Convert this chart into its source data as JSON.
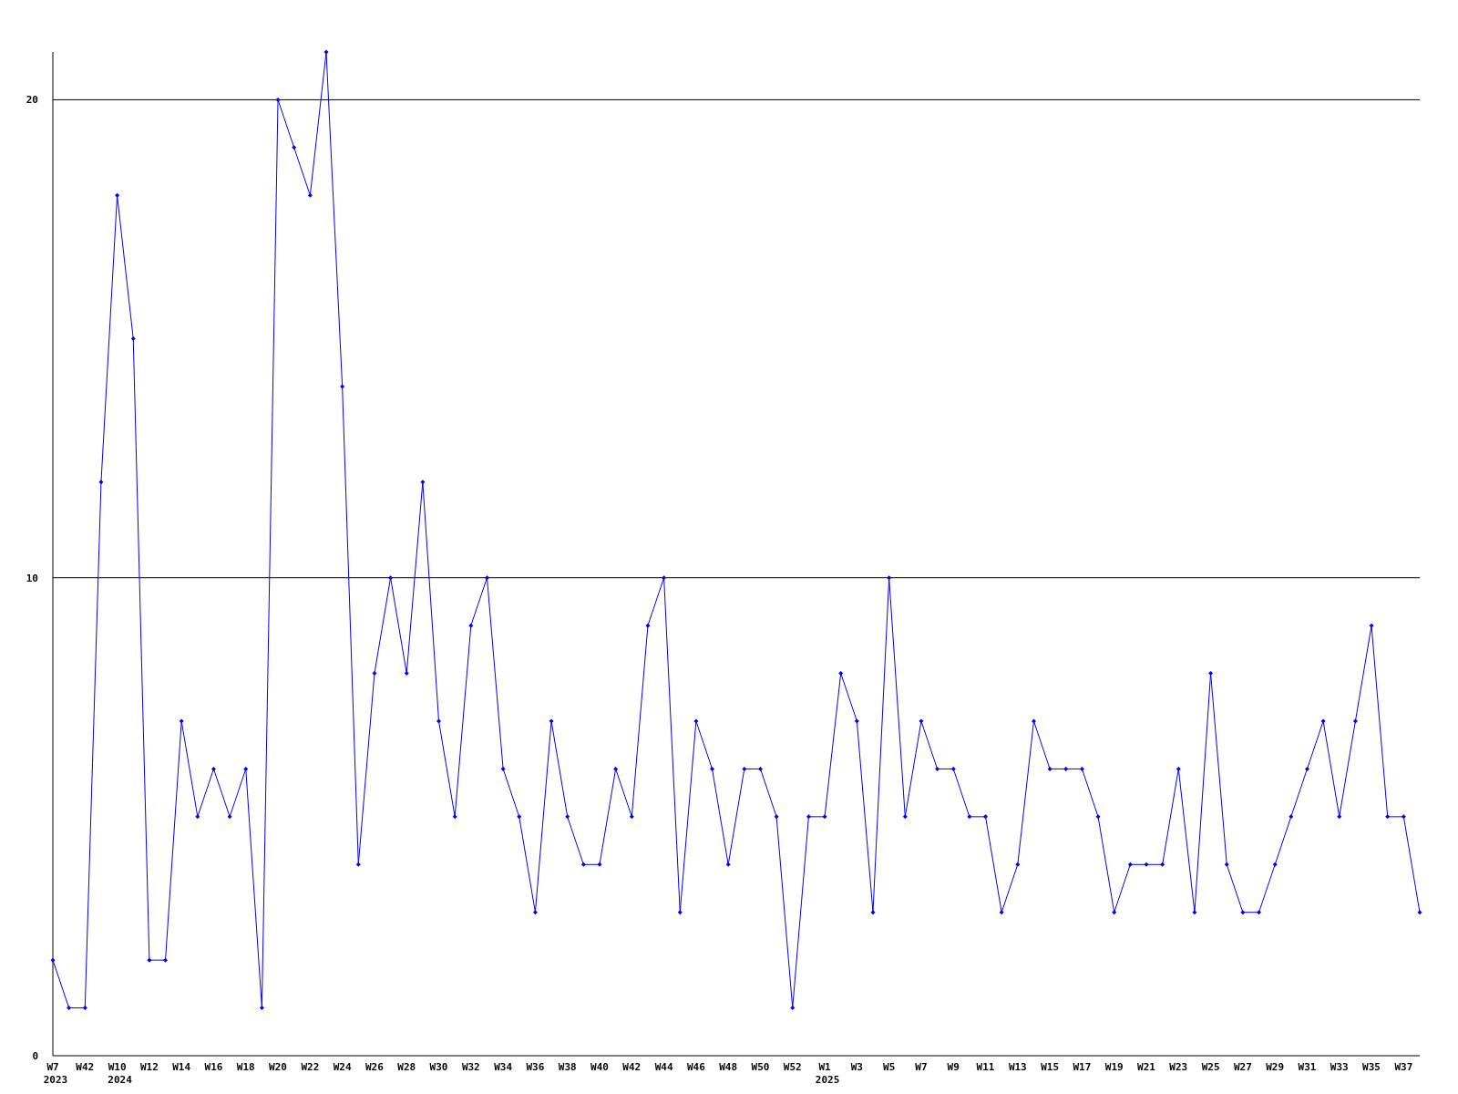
{
  "chart_data": {
    "type": "line",
    "categories": [
      "W7\n2023",
      null,
      "W42",
      null,
      "W10\n2024",
      null,
      "W12",
      null,
      "W14",
      null,
      "W16",
      null,
      "W18",
      null,
      "W20",
      null,
      "W22",
      null,
      "W24",
      null,
      "W26",
      null,
      "W28",
      null,
      "W30",
      null,
      "W32",
      null,
      "W34",
      null,
      "W36",
      null,
      "W38",
      null,
      "W40",
      null,
      "W42",
      null,
      "W44",
      null,
      "W46",
      null,
      "W48",
      null,
      "W50",
      null,
      "W52",
      null,
      "W1\n2025",
      null,
      "W3",
      null,
      "W5",
      null,
      "W7",
      null,
      "W9",
      null,
      "W11",
      null,
      "W13",
      null,
      "W15",
      null,
      "W17",
      null,
      "W19",
      null,
      "W21",
      null,
      "W23",
      null,
      "W25",
      null,
      "W27",
      null,
      "W29",
      null,
      "W31",
      null,
      "W33",
      null,
      "W35",
      null,
      "W37",
      null
    ],
    "series": [
      {
        "color": "#0000ff",
        "values": [
          2,
          1,
          1,
          12,
          18,
          15,
          2,
          2,
          7,
          5,
          6,
          5,
          6,
          1,
          20,
          19,
          18,
          21,
          14,
          4,
          8,
          10,
          8,
          12,
          7,
          5,
          9,
          10,
          6,
          5,
          3,
          7,
          5,
          4,
          4,
          6,
          5,
          9,
          10,
          3,
          7,
          6,
          4,
          6,
          6,
          5,
          1,
          5,
          5,
          8,
          7,
          3,
          10,
          5,
          7,
          6,
          6,
          5,
          5,
          3,
          4,
          7,
          6,
          6,
          6,
          5,
          3,
          4,
          4,
          4,
          6,
          3,
          8,
          4,
          3,
          3,
          4,
          5,
          6,
          7,
          5,
          7,
          9,
          5,
          5,
          3
        ]
      }
    ],
    "ylim": [
      0,
      21
    ],
    "yticks": [
      0,
      10,
      20
    ],
    "grid": "y",
    "marker": "diamond",
    "line_style": "solid"
  }
}
